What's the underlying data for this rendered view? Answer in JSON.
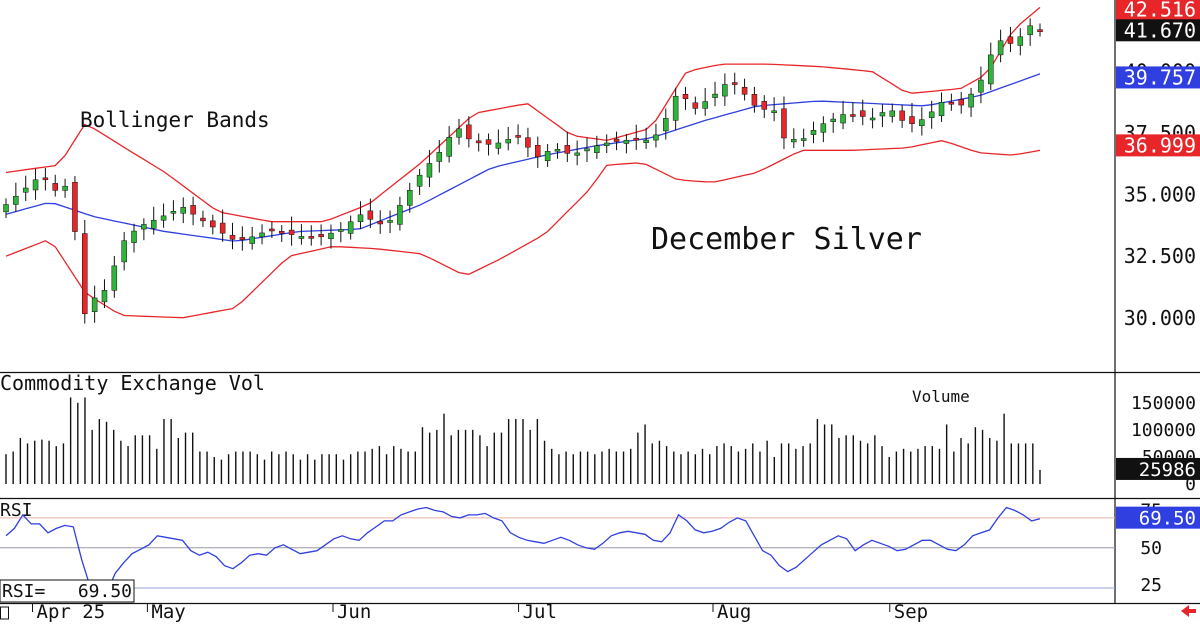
{
  "chart_data": [
    {
      "type": "candlestick",
      "panel": "price",
      "title": "December Silver",
      "indicator_label": "Bollinger Bands",
      "ylim": [
        27.8,
        42.9
      ],
      "y_ticks": [
        "30.000",
        "32.500",
        "35.000",
        "37.500",
        "40.000"
      ],
      "y_tick_values": [
        30.0,
        32.5,
        35.0,
        37.5,
        40.0
      ],
      "x_labels": [
        "Apr 25",
        "May",
        "Jun",
        "Jul",
        "Aug",
        "Sep"
      ],
      "x_label_session_index": [
        3,
        16,
        37,
        58,
        80,
        100
      ],
      "sessions": 106,
      "ohlc_anchor_closes": [
        [
          0,
          34.6
        ],
        [
          2,
          35.2
        ],
        [
          4,
          35.8
        ],
        [
          6,
          35.0
        ],
        [
          7,
          35.5
        ],
        [
          8,
          33.0
        ],
        [
          9,
          29.9
        ],
        [
          10,
          30.8
        ],
        [
          11,
          31.0
        ],
        [
          12,
          31.8
        ],
        [
          13,
          33.0
        ],
        [
          15,
          33.7
        ],
        [
          17,
          34.0
        ],
        [
          20,
          34.5
        ],
        [
          22,
          34.0
        ],
        [
          26,
          33.1
        ],
        [
          28,
          33.3
        ],
        [
          30,
          33.6
        ],
        [
          32,
          33.4
        ],
        [
          35,
          33.2
        ],
        [
          38,
          33.6
        ],
        [
          40,
          34.2
        ],
        [
          43,
          33.7
        ],
        [
          45,
          34.8
        ],
        [
          47,
          35.9
        ],
        [
          49,
          36.7
        ],
        [
          51,
          37.8
        ],
        [
          52,
          37.3
        ],
        [
          55,
          37.0
        ],
        [
          58,
          37.4
        ],
        [
          60,
          36.5
        ],
        [
          62,
          36.9
        ],
        [
          64,
          36.6
        ],
        [
          66,
          36.9
        ],
        [
          68,
          37.1
        ],
        [
          70,
          37.2
        ],
        [
          72,
          37.3
        ],
        [
          73,
          37.1
        ],
        [
          75,
          38.3
        ],
        [
          76,
          39.2
        ],
        [
          78,
          38.5
        ],
        [
          80,
          39.0
        ],
        [
          82,
          39.7
        ],
        [
          83,
          39.3
        ],
        [
          85,
          38.5
        ],
        [
          87,
          38.4
        ],
        [
          88,
          37.3
        ],
        [
          90,
          37.2
        ],
        [
          92,
          37.8
        ],
        [
          95,
          38.3
        ],
        [
          98,
          38.1
        ],
        [
          100,
          38.5
        ],
        [
          102,
          37.8
        ],
        [
          104,
          38.1
        ],
        [
          106,
          38.8
        ],
        [
          108,
          38.6
        ],
        [
          110,
          39.4
        ],
        [
          111,
          40.2
        ],
        [
          112,
          41.3
        ],
        [
          114,
          41.1
        ],
        [
          116,
          41.9
        ],
        [
          117,
          41.67
        ]
      ],
      "bollinger": {
        "upper_anchors": [
          [
            0,
            35.9
          ],
          [
            6,
            36.2
          ],
          [
            9,
            37.9
          ],
          [
            13,
            37.0
          ],
          [
            18,
            35.9
          ],
          [
            24,
            34.3
          ],
          [
            30,
            33.9
          ],
          [
            36,
            33.9
          ],
          [
            41,
            34.6
          ],
          [
            47,
            36.3
          ],
          [
            53,
            38.3
          ],
          [
            59,
            38.7
          ],
          [
            64,
            37.4
          ],
          [
            68,
            37.2
          ],
          [
            73,
            37.7
          ],
          [
            77,
            40.0
          ],
          [
            81,
            40.3
          ],
          [
            86,
            40.3
          ],
          [
            92,
            40.2
          ],
          [
            98,
            40.0
          ],
          [
            102,
            39.1
          ],
          [
            108,
            39.3
          ],
          [
            111,
            39.9
          ],
          [
            114,
            41.7
          ],
          [
            117,
            42.6
          ]
        ],
        "middle_anchors": [
          [
            0,
            34.2
          ],
          [
            5,
            34.7
          ],
          [
            10,
            34.1
          ],
          [
            18,
            33.5
          ],
          [
            26,
            33.1
          ],
          [
            33,
            33.5
          ],
          [
            40,
            33.6
          ],
          [
            47,
            34.6
          ],
          [
            55,
            36.1
          ],
          [
            61,
            36.6
          ],
          [
            67,
            37.0
          ],
          [
            73,
            37.3
          ],
          [
            79,
            38.0
          ],
          [
            85,
            38.6
          ],
          [
            92,
            38.8
          ],
          [
            98,
            38.7
          ],
          [
            104,
            38.6
          ],
          [
            110,
            39.0
          ],
          [
            117,
            39.9
          ]
        ],
        "lower_anchors": [
          [
            0,
            32.5
          ],
          [
            5,
            33.2
          ],
          [
            9,
            31.0
          ],
          [
            13,
            30.1
          ],
          [
            20,
            30.0
          ],
          [
            26,
            30.4
          ],
          [
            32,
            32.5
          ],
          [
            37,
            32.9
          ],
          [
            42,
            32.8
          ],
          [
            47,
            32.6
          ],
          [
            52,
            31.7
          ],
          [
            56,
            32.4
          ],
          [
            61,
            33.4
          ],
          [
            66,
            35.2
          ],
          [
            68,
            36.2
          ],
          [
            72,
            36.3
          ],
          [
            76,
            35.6
          ],
          [
            80,
            35.5
          ],
          [
            85,
            35.9
          ],
          [
            90,
            36.8
          ],
          [
            96,
            36.8
          ],
          [
            102,
            36.9
          ],
          [
            106,
            37.2
          ],
          [
            110,
            36.7
          ],
          [
            114,
            36.6
          ],
          [
            117,
            36.8
          ]
        ]
      },
      "price_labels": [
        {
          "label": "42.516",
          "value": 42.516,
          "color": "#e8262a"
        },
        {
          "label": "41.670",
          "value": 41.67,
          "color": "#111111"
        },
        {
          "label": "39.757",
          "value": 39.757,
          "color": "#2f3fe0"
        },
        {
          "label": "36.999",
          "value": 36.999,
          "color": "#e8262a"
        }
      ]
    },
    {
      "type": "bar",
      "panel": "volume",
      "title": "Commodity Exchange Vol",
      "series_label": "Volume",
      "ylim": [
        0,
        170000
      ],
      "y_ticks": [
        "150000",
        "100000",
        "50000",
        "0"
      ],
      "y_tick_values": [
        150000,
        100000,
        50000,
        0
      ],
      "values": [
        55000,
        60000,
        85000,
        75000,
        80000,
        82000,
        80000,
        70000,
        75000,
        160000,
        150000,
        160000,
        100000,
        120000,
        115000,
        100000,
        80000,
        70000,
        90000,
        90000,
        90000,
        65000,
        120000,
        120000,
        85000,
        95000,
        95000,
        60000,
        60000,
        50000,
        45000,
        55000,
        60000,
        60000,
        60000,
        55000,
        45000,
        60000,
        55000,
        60000,
        55000,
        45000,
        55000,
        45000,
        55000,
        55000,
        55000,
        45000,
        55000,
        60000,
        60000,
        65000,
        70000,
        55000,
        70000,
        65000,
        60000,
        60000,
        105000,
        95000,
        100000,
        130000,
        90000,
        100000,
        100000,
        100000,
        90000,
        70000,
        95000,
        95000,
        120000,
        120000,
        120000,
        100000,
        120000,
        80000,
        65000,
        55000,
        60000,
        55000,
        60000,
        60000,
        55000,
        60000,
        65000,
        60000,
        60000,
        65000,
        95000,
        110000,
        75000,
        80000,
        70000,
        60000,
        55000,
        60000,
        55000,
        65000,
        55000,
        70000,
        75000,
        70000,
        60000,
        65000,
        75000,
        60000,
        80000,
        50000,
        75000,
        75000,
        65000,
        70000,
        75000,
        120000,
        110000,
        110000,
        85000,
        90000,
        90000,
        80000,
        75000,
        90000,
        70000,
        50000,
        60000,
        65000,
        60000,
        65000,
        70000,
        70000,
        65000,
        110000,
        60000,
        85000,
        75000,
        105000,
        100000,
        85000,
        80000,
        130000,
        75000,
        75000,
        75000,
        75000,
        25986
      ],
      "current_label": "25986",
      "current_value": 25986
    },
    {
      "type": "line",
      "panel": "rsi",
      "title": "RSI",
      "readout_label": "RSI=",
      "readout_value": "69.50",
      "ylim": [
        15,
        82
      ],
      "y_ticks": [
        "75",
        "50",
        "25"
      ],
      "y_tick_values": [
        75,
        50,
        25
      ],
      "reference_lines": [
        {
          "value": 70,
          "color": "#e8b2a8"
        },
        {
          "value": 50,
          "color": "#9a9aa8"
        },
        {
          "value": 23,
          "color": "#9aa0d8"
        }
      ],
      "values": [
        58,
        63,
        72,
        66,
        66,
        60,
        63,
        65,
        64,
        42,
        24,
        18,
        20,
        33,
        40,
        46,
        49,
        52,
        58,
        57,
        56,
        55,
        48,
        45,
        47,
        44,
        38,
        36,
        40,
        45,
        46,
        45,
        50,
        52,
        49,
        46,
        47,
        48,
        52,
        56,
        58,
        56,
        55,
        60,
        64,
        68,
        68,
        72,
        74,
        76,
        77,
        75,
        74,
        71,
        70,
        72,
        72,
        73,
        70,
        68,
        60,
        57,
        55,
        54,
        53,
        55,
        57,
        55,
        52,
        50,
        49,
        53,
        58,
        60,
        61,
        60,
        59,
        55,
        54,
        60,
        72,
        68,
        62,
        60,
        61,
        63,
        67,
        70,
        68,
        58,
        48,
        45,
        38,
        34,
        37,
        42,
        47,
        52,
        55,
        58,
        56,
        48,
        52,
        55,
        53,
        51,
        48,
        49,
        52,
        55,
        55,
        52,
        49,
        48,
        52,
        58,
        60,
        62,
        70,
        77,
        75,
        72,
        68,
        69.5
      ]
    }
  ]
}
